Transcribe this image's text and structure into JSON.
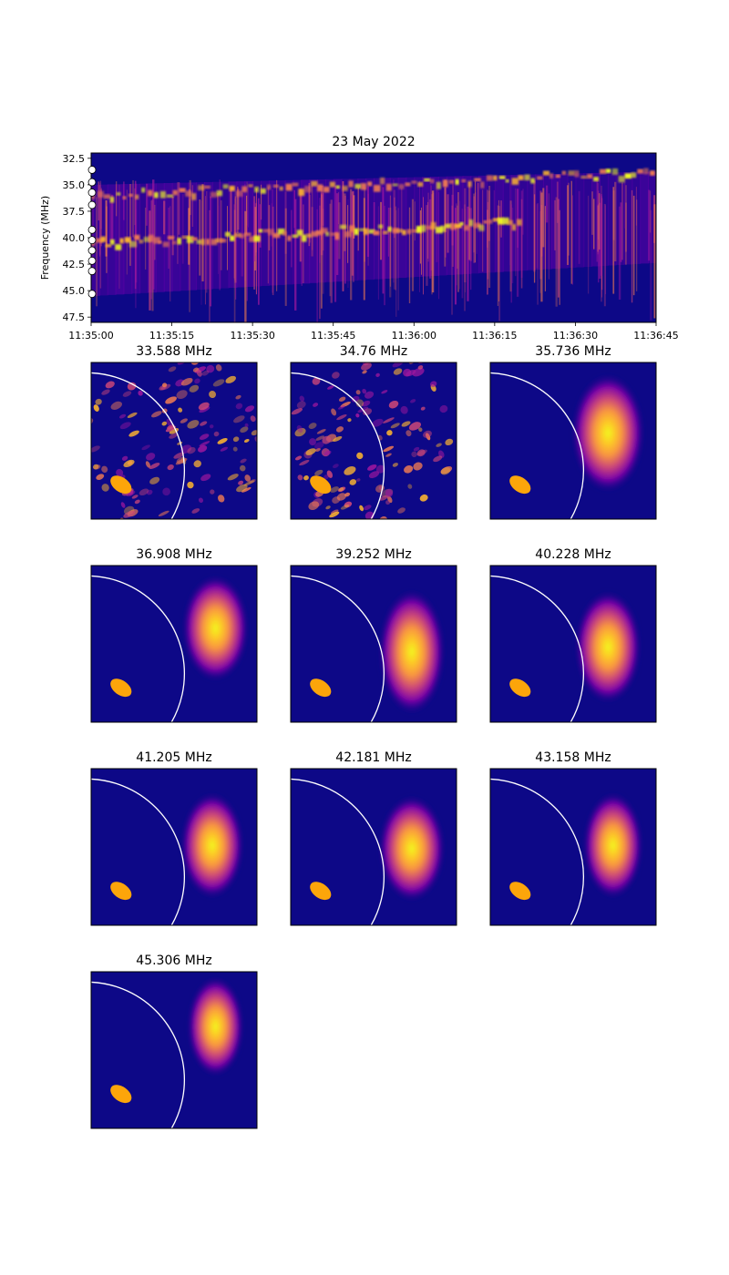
{
  "figure": {
    "colors": {
      "background_dark": "#0d0887",
      "colormap": [
        "#0d0887",
        "#5c01a6",
        "#9c179e",
        "#cc4778",
        "#ed7953",
        "#fdb42f",
        "#f0f921"
      ],
      "limb_circle": "#ffffff",
      "beam": "#fca50a",
      "marker_fill": "#ffffff",
      "marker_stroke": "#000000"
    }
  },
  "chart_data": [
    {
      "type": "heatmap",
      "name": "dynamic-spectrum",
      "title": "23 May 2022",
      "xlabel": "",
      "ylabel": "Frequency (MHz)",
      "x_tick_labels": [
        "11:35:00",
        "11:35:15",
        "11:35:30",
        "11:35:45",
        "11:36:00",
        "11:36:15",
        "11:36:30",
        "11:36:45"
      ],
      "x_range_seconds_after_11_35_00": [
        0,
        105
      ],
      "y_ticks": [
        32.5,
        35.0,
        37.5,
        40.0,
        42.5,
        45.0,
        47.5
      ],
      "y_tick_labels": [
        "32.5",
        "35.0",
        "37.5",
        "40.0",
        "42.5",
        "45.0",
        "47.5"
      ],
      "ylim": [
        48.0,
        32.0
      ],
      "colormap": "plasma",
      "burst_lanes": [
        {
          "name": "upper lane",
          "freq_start_MHz": 36.0,
          "freq_end_MHz": 33.8,
          "time_start_s": 0,
          "time_end_s": 105
        },
        {
          "name": "lower lane",
          "freq_start_MHz": 40.5,
          "freq_end_MHz": 38.5,
          "time_start_s": 0,
          "time_end_s": 80
        }
      ],
      "marked_frequencies_MHz": [
        33.588,
        34.76,
        35.736,
        36.908,
        39.252,
        40.228,
        41.205,
        42.181,
        43.158,
        45.306
      ]
    },
    {
      "type": "heatmap",
      "name": "radio-images",
      "colormap": "plasma",
      "panels": [
        {
          "title": "33.588 MHz",
          "frequency_MHz": 33.588,
          "source": "diffuse striated emission"
        },
        {
          "title": "34.76 MHz",
          "frequency_MHz": 34.76,
          "source": "diffuse striated emission"
        },
        {
          "title": "35.736 MHz",
          "frequency_MHz": 35.736,
          "source": "compact source"
        },
        {
          "title": "36.908 MHz",
          "frequency_MHz": 36.908,
          "source": "compact source"
        },
        {
          "title": "39.252 MHz",
          "frequency_MHz": 39.252,
          "source": "compact source"
        },
        {
          "title": "40.228 MHz",
          "frequency_MHz": 40.228,
          "source": "compact source"
        },
        {
          "title": "41.205 MHz",
          "frequency_MHz": 41.205,
          "source": "compact source"
        },
        {
          "title": "42.181 MHz",
          "frequency_MHz": 42.181,
          "source": "compact source"
        },
        {
          "title": "43.158 MHz",
          "frequency_MHz": 43.158,
          "source": "compact source"
        },
        {
          "title": "45.306 MHz",
          "frequency_MHz": 45.306,
          "source": "compact source"
        }
      ]
    }
  ]
}
